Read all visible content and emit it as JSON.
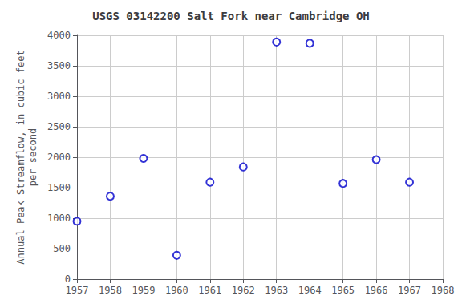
{
  "chart_data": {
    "type": "scatter",
    "title": "USGS 03142200 Salt Fork near Cambridge OH",
    "ylabel": "Annual Peak Streamflow, in cubic feet\nper second",
    "x": [
      1957,
      1958,
      1959,
      1960,
      1961,
      1962,
      1963,
      1964,
      1965,
      1966,
      1967
    ],
    "values": [
      950,
      1360,
      1980,
      390,
      1590,
      1840,
      3890,
      3870,
      1570,
      1960,
      1590
    ],
    "xlim": [
      1957,
      1968
    ],
    "ylim": [
      0,
      4000
    ],
    "xticks": [
      1957,
      1958,
      1959,
      1960,
      1961,
      1962,
      1963,
      1964,
      1965,
      1966,
      1967,
      1968
    ],
    "yticks": [
      0,
      500,
      1000,
      1500,
      2000,
      2500,
      3000,
      3500,
      4000
    ],
    "color": "#0000CC",
    "marker": "hollow_circle",
    "grid": true
  }
}
